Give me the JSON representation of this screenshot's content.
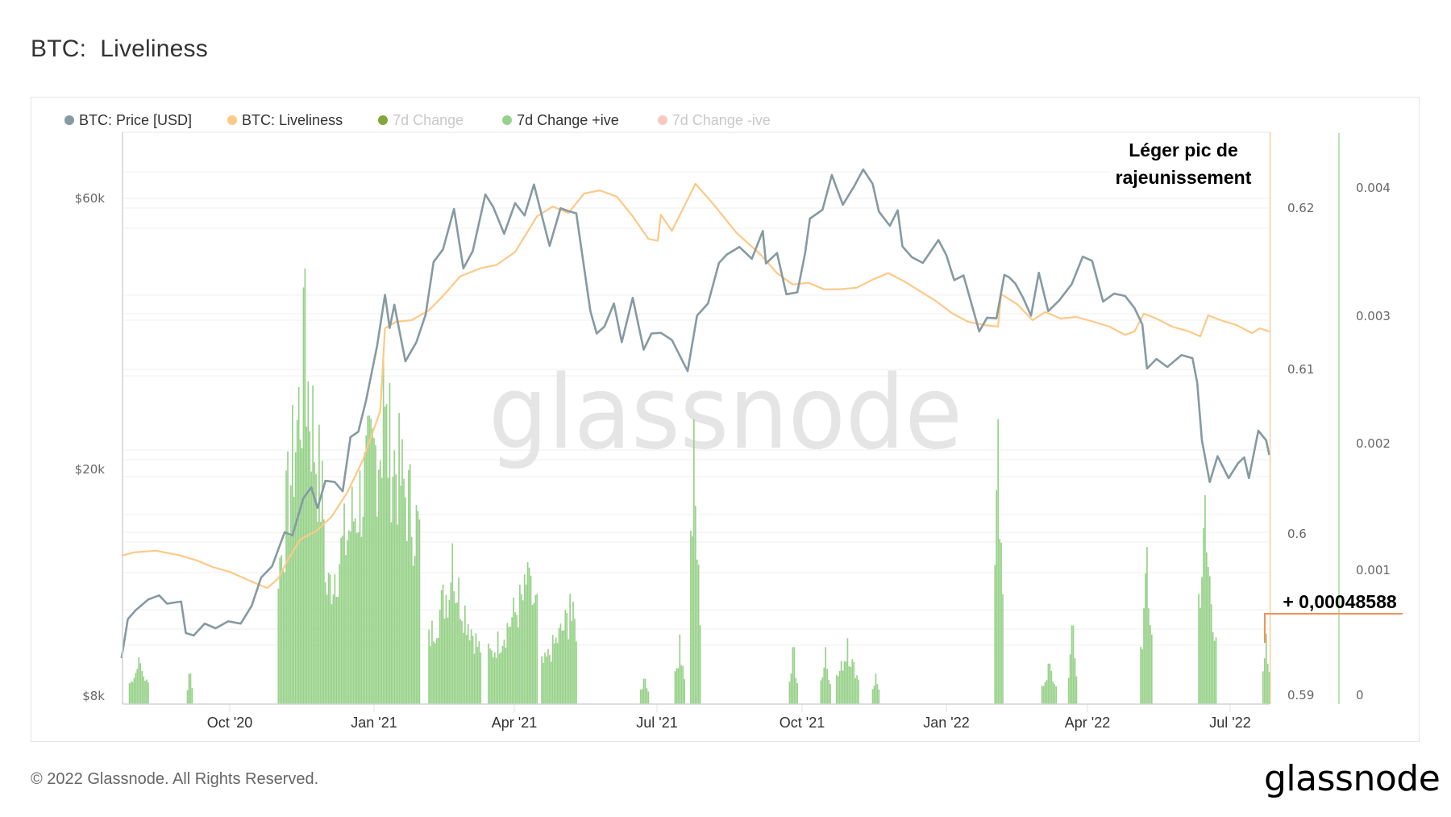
{
  "header": {
    "title": "BTC:  Liveliness"
  },
  "legend": [
    {
      "label": "BTC: Price [USD]",
      "color": "#869aa2",
      "active": true
    },
    {
      "label": "BTC: Liveliness",
      "color": "#fdc987",
      "active": true
    },
    {
      "label": "7d Change",
      "color": "#82a63c",
      "active": false
    },
    {
      "label": "7d Change +ive",
      "color": "#98d28a",
      "active": true
    },
    {
      "label": "7d Change -ive",
      "color": "#f6c9c2",
      "active": false
    }
  ],
  "annotation": {
    "line1": "Léger pic de",
    "line2": "rajeunissement",
    "value_label": "+ 0,00048588",
    "marker_color": "#f4915a"
  },
  "watermark": "glassnode",
  "footer": {
    "copyright": "© 2022 Glassnode. All Rights Reserved.",
    "logo": "glassnode"
  },
  "colors": {
    "price": "#869aa2",
    "liveliness": "#fdc987",
    "bars": "#98d28a",
    "grid": "#efefef",
    "liveliness_axis": "#fdd9a8",
    "bars_axis": "#a8dc98"
  },
  "chart_data": {
    "type": "line",
    "title": "BTC:  Liveliness",
    "xlabel": "",
    "x_ticks": [
      "Oct '20",
      "Jan '21",
      "Apr '21",
      "Jul '21",
      "Oct '21",
      "Jan '22",
      "Apr '22",
      "Jul '22"
    ],
    "x_range": [
      "2020-07-24",
      "2022-07-26"
    ],
    "legend_position": "top-left",
    "grid": true,
    "axes": [
      {
        "id": "price",
        "side": "left",
        "scale": "log",
        "ticks": [
          "$8k",
          "$20k",
          "$60k"
        ],
        "range": [
          8000,
          75000
        ]
      },
      {
        "id": "liveliness",
        "side": "right",
        "ticks": [
          "0.59",
          "0.6",
          "0.61",
          "0.62"
        ],
        "range": [
          0.59,
          0.6235
        ]
      },
      {
        "id": "change",
        "side": "right-outer",
        "ticks": [
          "0",
          "0.001",
          "0.002",
          "0.003",
          "0.004"
        ],
        "range": [
          0,
          0.00403
        ]
      }
    ],
    "series": [
      {
        "name": "BTC: Price [USD]",
        "axis": "price",
        "type": "line",
        "points": [
          [
            "2020-07-24",
            9300
          ],
          [
            "2020-07-28",
            10900
          ],
          [
            "2020-08-02",
            11300
          ],
          [
            "2020-08-10",
            11800
          ],
          [
            "2020-08-17",
            12000
          ],
          [
            "2020-08-22",
            11600
          ],
          [
            "2020-08-31",
            11700
          ],
          [
            "2020-09-03",
            10300
          ],
          [
            "2020-09-08",
            10200
          ],
          [
            "2020-09-15",
            10700
          ],
          [
            "2020-09-22",
            10500
          ],
          [
            "2020-09-30",
            10800
          ],
          [
            "2020-10-08",
            10700
          ],
          [
            "2020-10-15",
            11500
          ],
          [
            "2020-10-21",
            12900
          ],
          [
            "2020-10-28",
            13500
          ],
          [
            "2020-11-05",
            15500
          ],
          [
            "2020-11-10",
            15300
          ],
          [
            "2020-11-17",
            17800
          ],
          [
            "2020-11-22",
            18600
          ],
          [
            "2020-11-26",
            17100
          ],
          [
            "2020-12-01",
            19100
          ],
          [
            "2020-12-07",
            19000
          ],
          [
            "2020-12-12",
            18300
          ],
          [
            "2020-12-17",
            22800
          ],
          [
            "2020-12-22",
            23300
          ],
          [
            "2020-12-27",
            26500
          ],
          [
            "2021-01-03",
            33000
          ],
          [
            "2021-01-08",
            40600
          ],
          [
            "2021-01-11",
            35500
          ],
          [
            "2021-01-14",
            39000
          ],
          [
            "2021-01-21",
            31000
          ],
          [
            "2021-01-28",
            33500
          ],
          [
            "2021-02-03",
            37500
          ],
          [
            "2021-02-08",
            46400
          ],
          [
            "2021-02-14",
            48800
          ],
          [
            "2021-02-21",
            57500
          ],
          [
            "2021-02-27",
            45200
          ],
          [
            "2021-03-05",
            48500
          ],
          [
            "2021-03-13",
            61000
          ],
          [
            "2021-03-18",
            58000
          ],
          [
            "2021-03-25",
            52000
          ],
          [
            "2021-04-01",
            58900
          ],
          [
            "2021-04-07",
            56000
          ],
          [
            "2021-04-13",
            63500
          ],
          [
            "2021-04-18",
            56000
          ],
          [
            "2021-04-23",
            49500
          ],
          [
            "2021-04-30",
            57700
          ],
          [
            "2021-05-05",
            57000
          ],
          [
            "2021-05-10",
            56500
          ],
          [
            "2021-05-13",
            49500
          ],
          [
            "2021-05-19",
            38000
          ],
          [
            "2021-05-23",
            34700
          ],
          [
            "2021-05-28",
            35700
          ],
          [
            "2021-06-03",
            39200
          ],
          [
            "2021-06-08",
            33500
          ],
          [
            "2021-06-15",
            40100
          ],
          [
            "2021-06-22",
            32500
          ],
          [
            "2021-06-27",
            34700
          ],
          [
            "2021-07-03",
            34800
          ],
          [
            "2021-07-10",
            33800
          ],
          [
            "2021-07-20",
            29800
          ],
          [
            "2021-07-26",
            37300
          ],
          [
            "2021-08-02",
            39200
          ],
          [
            "2021-08-09",
            46200
          ],
          [
            "2021-08-14",
            47800
          ],
          [
            "2021-08-22",
            49300
          ],
          [
            "2021-08-30",
            47000
          ],
          [
            "2021-09-06",
            52600
          ],
          [
            "2021-09-08",
            46100
          ],
          [
            "2021-09-15",
            48100
          ],
          [
            "2021-09-21",
            40700
          ],
          [
            "2021-09-28",
            41000
          ],
          [
            "2021-10-03",
            48200
          ],
          [
            "2021-10-06",
            55300
          ],
          [
            "2021-10-14",
            57300
          ],
          [
            "2021-10-20",
            66000
          ],
          [
            "2021-10-27",
            58500
          ],
          [
            "2021-11-03",
            62900
          ],
          [
            "2021-11-09",
            67500
          ],
          [
            "2021-11-15",
            63700
          ],
          [
            "2021-11-19",
            56900
          ],
          [
            "2021-11-26",
            53700
          ],
          [
            "2021-12-01",
            57200
          ],
          [
            "2021-12-04",
            49400
          ],
          [
            "2021-12-10",
            47300
          ],
          [
            "2021-12-17",
            46200
          ],
          [
            "2021-12-27",
            50700
          ],
          [
            "2022-01-01",
            47700
          ],
          [
            "2022-01-06",
            43100
          ],
          [
            "2022-01-12",
            43900
          ],
          [
            "2022-01-22",
            35000
          ],
          [
            "2022-01-27",
            37000
          ],
          [
            "2022-02-02",
            36900
          ],
          [
            "2022-02-07",
            44000
          ],
          [
            "2022-02-10",
            43600
          ],
          [
            "2022-02-14",
            42500
          ],
          [
            "2022-02-19",
            40100
          ],
          [
            "2022-02-24",
            37300
          ],
          [
            "2022-03-01",
            44400
          ],
          [
            "2022-03-07",
            38000
          ],
          [
            "2022-03-14",
            39700
          ],
          [
            "2022-03-22",
            42400
          ],
          [
            "2022-03-29",
            47400
          ],
          [
            "2022-04-04",
            46600
          ],
          [
            "2022-04-11",
            39500
          ],
          [
            "2022-04-18",
            40800
          ],
          [
            "2022-04-25",
            40400
          ],
          [
            "2022-05-01",
            38500
          ],
          [
            "2022-05-06",
            36000
          ],
          [
            "2022-05-09",
            30100
          ],
          [
            "2022-05-15",
            31300
          ],
          [
            "2022-05-22",
            30300
          ],
          [
            "2022-05-31",
            31800
          ],
          [
            "2022-06-07",
            31400
          ],
          [
            "2022-06-10",
            28400
          ],
          [
            "2022-06-13",
            22500
          ],
          [
            "2022-06-18",
            19000
          ],
          [
            "2022-06-23",
            21100
          ],
          [
            "2022-06-30",
            19300
          ],
          [
            "2022-07-06",
            20500
          ],
          [
            "2022-07-10",
            21000
          ],
          [
            "2022-07-13",
            19300
          ],
          [
            "2022-07-19",
            23400
          ],
          [
            "2022-07-24",
            22500
          ],
          [
            "2022-07-26",
            21200
          ]
        ]
      },
      {
        "name": "BTC: Liveliness",
        "axis": "liveliness",
        "type": "line",
        "points": [
          [
            "2020-07-24",
            0.5986
          ],
          [
            "2020-08-01",
            0.5988
          ],
          [
            "2020-08-15",
            0.5989
          ],
          [
            "2020-08-31",
            0.5986
          ],
          [
            "2020-09-10",
            0.5983
          ],
          [
            "2020-09-20",
            0.5979
          ],
          [
            "2020-10-01",
            0.5976
          ],
          [
            "2020-10-15",
            0.597
          ],
          [
            "2020-10-25",
            0.5966
          ],
          [
            "2020-11-01",
            0.5972
          ],
          [
            "2020-11-08",
            0.5985
          ],
          [
            "2020-11-15",
            0.5996
          ],
          [
            "2020-11-25",
            0.6001
          ],
          [
            "2020-12-05",
            0.601
          ],
          [
            "2020-12-15",
            0.6025
          ],
          [
            "2020-12-25",
            0.6045
          ],
          [
            "2021-01-05",
            0.6075
          ],
          [
            "2021-01-08",
            0.6126
          ],
          [
            "2021-01-15",
            0.613
          ],
          [
            "2021-01-25",
            0.6131
          ],
          [
            "2021-02-05",
            0.6137
          ],
          [
            "2021-02-15",
            0.6147
          ],
          [
            "2021-02-25",
            0.6158
          ],
          [
            "2021-03-10",
            0.6163
          ],
          [
            "2021-03-20",
            0.6165
          ],
          [
            "2021-04-01",
            0.6173
          ],
          [
            "2021-04-15",
            0.6195
          ],
          [
            "2021-04-25",
            0.6201
          ],
          [
            "2021-05-05",
            0.6197
          ],
          [
            "2021-05-15",
            0.6209
          ],
          [
            "2021-05-25",
            0.6211
          ],
          [
            "2021-06-05",
            0.6207
          ],
          [
            "2021-06-15",
            0.6195
          ],
          [
            "2021-06-25",
            0.6181
          ],
          [
            "2021-07-01",
            0.618
          ],
          [
            "2021-07-03",
            0.6196
          ],
          [
            "2021-07-10",
            0.6186
          ],
          [
            "2021-07-25",
            0.6215
          ],
          [
            "2021-08-05",
            0.6203
          ],
          [
            "2021-08-20",
            0.6185
          ],
          [
            "2021-09-05",
            0.6171
          ],
          [
            "2021-09-15",
            0.616
          ],
          [
            "2021-09-25",
            0.6153
          ],
          [
            "2021-10-05",
            0.6154
          ],
          [
            "2021-10-15",
            0.615
          ],
          [
            "2021-10-25",
            0.615
          ],
          [
            "2021-11-05",
            0.6151
          ],
          [
            "2021-11-15",
            0.6156
          ],
          [
            "2021-11-25",
            0.616
          ],
          [
            "2021-12-05",
            0.6155
          ],
          [
            "2021-12-15",
            0.6149
          ],
          [
            "2021-12-25",
            0.6143
          ],
          [
            "2022-01-05",
            0.6135
          ],
          [
            "2022-01-15",
            0.613
          ],
          [
            "2022-01-25",
            0.6128
          ],
          [
            "2022-02-03",
            0.6127
          ],
          [
            "2022-02-05",
            0.6147
          ],
          [
            "2022-02-15",
            0.6141
          ],
          [
            "2022-02-25",
            0.6131
          ],
          [
            "2022-03-05",
            0.6136
          ],
          [
            "2022-03-15",
            0.6132
          ],
          [
            "2022-03-25",
            0.6133
          ],
          [
            "2022-04-05",
            0.613
          ],
          [
            "2022-04-15",
            0.6127
          ],
          [
            "2022-04-25",
            0.6122
          ],
          [
            "2022-05-01",
            0.6124
          ],
          [
            "2022-05-07",
            0.6135
          ],
          [
            "2022-05-15",
            0.6132
          ],
          [
            "2022-05-25",
            0.6127
          ],
          [
            "2022-06-05",
            0.6124
          ],
          [
            "2022-06-12",
            0.6121
          ],
          [
            "2022-06-17",
            0.6134
          ],
          [
            "2022-06-25",
            0.6131
          ],
          [
            "2022-07-05",
            0.6128
          ],
          [
            "2022-07-15",
            0.6123
          ],
          [
            "2022-07-20",
            0.6126
          ],
          [
            "2022-07-26",
            0.6124
          ]
        ]
      },
      {
        "name": "7d Change +ive",
        "axis": "change",
        "type": "bar",
        "clusters": [
          {
            "start": "2020-07-29",
            "end": "2020-08-10",
            "peak": 0.0003
          },
          {
            "start": "2020-09-04",
            "end": "2020-09-07",
            "peak": 0.00017
          },
          {
            "start": "2020-11-01",
            "end": "2020-11-30",
            "peak": 0.00337,
            "peak_date": "2020-11-18"
          },
          {
            "start": "2020-11-30",
            "end": "2021-01-30",
            "peak": 0.0027,
            "peak_date": "2021-01-07"
          },
          {
            "start": "2021-02-05",
            "end": "2021-03-10",
            "peak": 0.0012,
            "peak_date": "2021-02-20"
          },
          {
            "start": "2021-03-15",
            "end": "2021-04-15",
            "peak": 0.00105,
            "peak_date": "2021-04-09"
          },
          {
            "start": "2021-04-18",
            "end": "2021-05-10",
            "peak": 0.0008,
            "peak_date": "2021-05-06"
          },
          {
            "start": "2021-06-20",
            "end": "2021-06-25",
            "peak": 0.00013
          },
          {
            "start": "2021-07-12",
            "end": "2021-07-18",
            "peak": 0.00048
          },
          {
            "start": "2021-07-22",
            "end": "2021-07-28",
            "peak": 0.00218,
            "peak_date": "2021-07-24"
          },
          {
            "start": "2021-09-23",
            "end": "2021-09-28",
            "peak": 0.00038
          },
          {
            "start": "2021-10-13",
            "end": "2021-10-19",
            "peak": 0.00038
          },
          {
            "start": "2021-10-23",
            "end": "2021-11-06",
            "peak": 0.00045
          },
          {
            "start": "2021-11-15",
            "end": "2021-11-19",
            "peak": 0.00017
          },
          {
            "start": "2022-02-01",
            "end": "2022-02-06",
            "peak": 0.00218,
            "peak_date": "2022-02-03"
          },
          {
            "start": "2022-03-03",
            "end": "2022-03-12",
            "peak": 0.00025
          },
          {
            "start": "2022-03-20",
            "end": "2022-03-25",
            "peak": 0.00055
          },
          {
            "start": "2022-05-05",
            "end": "2022-05-12",
            "peak": 0.00117,
            "peak_date": "2022-05-09"
          },
          {
            "start": "2022-06-11",
            "end": "2022-06-22",
            "peak": 0.00158,
            "peak_date": "2022-06-15"
          },
          {
            "start": "2022-07-22",
            "end": "2022-07-26",
            "peak": 0.00048588
          }
        ]
      }
    ],
    "annotations": [
      {
        "text": "Léger pic de rajeunissement",
        "position": "top-right"
      },
      {
        "text": "+ 0,00048588",
        "points_to": "2022-07-26 bar"
      }
    ]
  }
}
